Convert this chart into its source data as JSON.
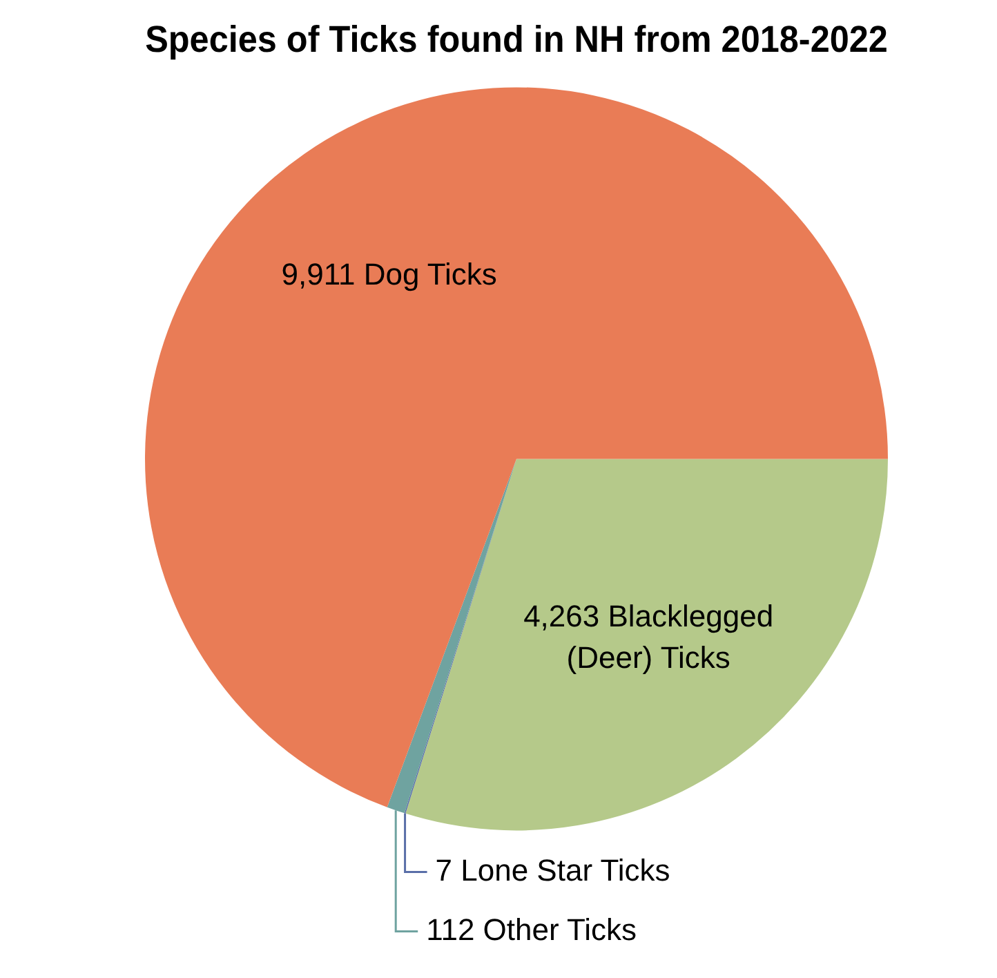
{
  "chart_data": {
    "type": "pie",
    "title": "Species of Ticks found in NH from 2018-2022",
    "categories": [
      "Blacklegged (Deer) Ticks",
      "Lone Star Ticks",
      "Other Ticks",
      "Dog Ticks"
    ],
    "values": [
      4263,
      7,
      112,
      9911
    ],
    "colors": [
      "#b5c98a",
      "#5a6fa8",
      "#6fa3a0",
      "#e97c56"
    ],
    "value_labels": [
      "4,263",
      "7",
      "112",
      "9,911"
    ]
  }
}
